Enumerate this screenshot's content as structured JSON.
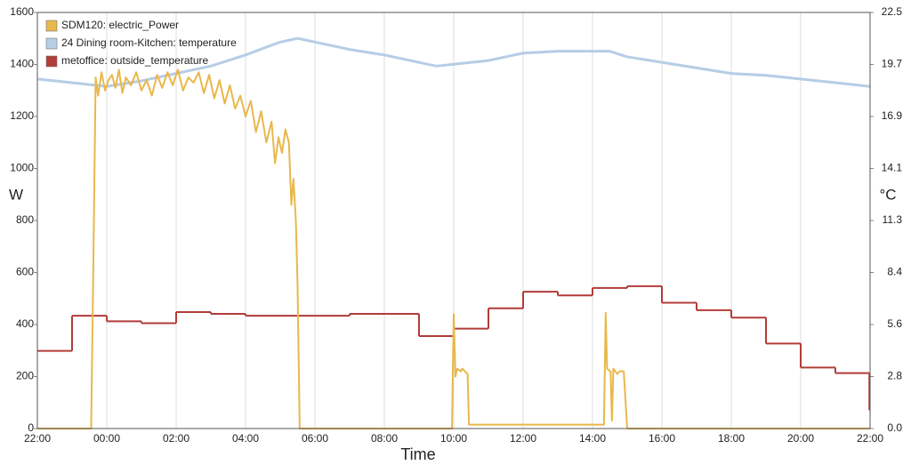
{
  "chart_data": {
    "type": "line",
    "x_label": "Time",
    "y_label": "W",
    "y2_label": "°C",
    "xlim": [
      0,
      24
    ],
    "xticks": [
      {
        "value": 0,
        "label": "22:00"
      },
      {
        "value": 2,
        "label": "00:00"
      },
      {
        "value": 4,
        "label": "02:00"
      },
      {
        "value": 6,
        "label": "04:00"
      },
      {
        "value": 8,
        "label": "06:00"
      },
      {
        "value": 10,
        "label": "08:00"
      },
      {
        "value": 12,
        "label": "10:00"
      },
      {
        "value": 14,
        "label": "12:00"
      },
      {
        "value": 16,
        "label": "14:00"
      },
      {
        "value": 18,
        "label": "16:00"
      },
      {
        "value": 20,
        "label": "18:00"
      },
      {
        "value": 22,
        "label": "20:00"
      },
      {
        "value": 24,
        "label": "22:00"
      }
    ],
    "ylim": [
      0,
      1600
    ],
    "yticks": [
      0,
      200,
      400,
      600,
      800,
      1000,
      1200,
      1400,
      1600
    ],
    "y2lim": [
      0,
      22.5
    ],
    "y2ticks": [
      {
        "value": 0,
        "label": "0.0"
      },
      {
        "value": 2.8125,
        "label": "2.8"
      },
      {
        "value": 5.625,
        "label": "5.6"
      },
      {
        "value": 8.4375,
        "label": "8.4"
      },
      {
        "value": 11.25,
        "label": "11.3"
      },
      {
        "value": 14.0625,
        "label": "14.1"
      },
      {
        "value": 16.875,
        "label": "16.9"
      },
      {
        "value": 19.6875,
        "label": "19.7"
      },
      22.5
    ],
    "xgrid": true,
    "legend": "top-left",
    "series": [
      {
        "name": "SDM120: electric_Power",
        "color": "#e8b84b",
        "axis": "y",
        "x": [
          0,
          1.55,
          1.62,
          1.68,
          1.75,
          1.85,
          1.95,
          2.05,
          2.15,
          2.25,
          2.35,
          2.45,
          2.55,
          2.7,
          2.85,
          3.0,
          3.15,
          3.3,
          3.45,
          3.6,
          3.75,
          3.9,
          4.05,
          4.2,
          4.35,
          4.5,
          4.65,
          4.8,
          4.95,
          5.1,
          5.25,
          5.4,
          5.55,
          5.7,
          5.85,
          6.0,
          6.15,
          6.3,
          6.45,
          6.6,
          6.75,
          6.85,
          6.95,
          7.05,
          7.15,
          7.25,
          7.32,
          7.38,
          7.45,
          7.5,
          7.56,
          11.95,
          12.0,
          12.05,
          12.1,
          12.2,
          12.25,
          12.4,
          12.44,
          16.33,
          16.38,
          16.42,
          16.52,
          16.56,
          16.6,
          16.72,
          16.78,
          16.9,
          17.0,
          24
        ],
        "values": [
          0,
          0,
          700,
          1350,
          1280,
          1370,
          1300,
          1340,
          1360,
          1310,
          1380,
          1290,
          1350,
          1320,
          1370,
          1300,
          1340,
          1280,
          1360,
          1310,
          1370,
          1320,
          1380,
          1300,
          1350,
          1330,
          1370,
          1290,
          1360,
          1270,
          1340,
          1250,
          1320,
          1230,
          1280,
          1200,
          1260,
          1140,
          1220,
          1100,
          1180,
          1020,
          1120,
          1060,
          1150,
          1100,
          860,
          960,
          800,
          550,
          0,
          0,
          440,
          200,
          230,
          220,
          230,
          210,
          15,
          15,
          445,
          230,
          220,
          30,
          230,
          210,
          220,
          220,
          0,
          0
        ]
      },
      {
        "name": "24 Dining room-Kitchen: temperature",
        "color": "#b6cde6",
        "axis": "y2",
        "x": [
          0,
          1,
          2,
          3,
          4,
          5,
          6,
          7,
          7.5,
          8,
          9,
          10,
          11,
          11.5,
          12,
          13,
          14,
          15,
          16,
          16.5,
          17,
          18,
          19,
          20,
          21,
          22,
          23,
          24
        ],
        "values": [
          18.9,
          18.7,
          18.5,
          18.8,
          19.2,
          19.6,
          20.2,
          20.9,
          21.1,
          20.9,
          20.5,
          20.2,
          19.8,
          19.6,
          19.7,
          19.9,
          20.3,
          20.4,
          20.4,
          20.4,
          20.1,
          19.8,
          19.5,
          19.2,
          19.1,
          18.9,
          18.7,
          18.5
        ]
      },
      {
        "name": "metoffice: outside_temperature",
        "color": "#b23c38",
        "axis": "y2",
        "step": "after",
        "x": [
          0,
          1,
          2,
          3,
          4,
          5,
          6,
          7,
          8,
          9,
          10,
          11,
          12,
          13,
          14,
          15,
          16,
          17,
          18,
          19,
          20,
          21,
          22,
          23,
          23.98
        ],
        "values": [
          4.2,
          6.1,
          5.8,
          5.7,
          6.3,
          6.2,
          6.1,
          6.1,
          6.1,
          6.2,
          6.2,
          5.0,
          5.4,
          6.5,
          7.4,
          7.2,
          7.6,
          7.7,
          6.8,
          6.4,
          6.0,
          4.6,
          3.3,
          3.0,
          1.0
        ]
      }
    ]
  }
}
